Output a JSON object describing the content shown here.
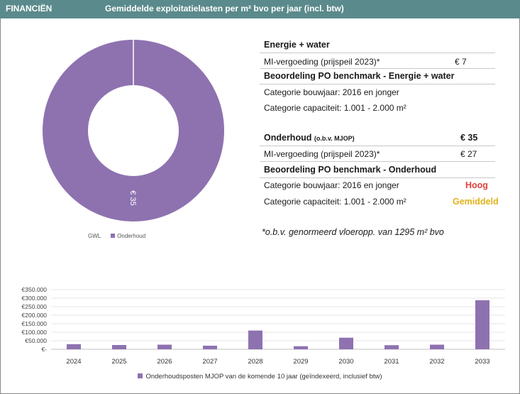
{
  "header": {
    "section": "FINANCIËN",
    "title": "Gemiddelde exploitatielasten per m² bvo per jaar (incl. btw)"
  },
  "energie": {
    "heading": "Energie + water",
    "mi_label": "MI-vergoeding (prijspeil 2023)*",
    "mi_value": "€ 7",
    "benchmark_heading": "Beoordeling PO benchmark - Energie + water",
    "cat_bouwjaar": "Categorie bouwjaar: 2016 en jonger",
    "cat_capaciteit": "Categorie capaciteit: 1.001 - 2.000 m²"
  },
  "onderhoud": {
    "heading": "Onderhoud",
    "heading_suffix": "(o.b.v. MJOP)",
    "total": "€ 35",
    "mi_label": "MI-vergoeding (prijspeil 2023)*",
    "mi_value": "€ 27",
    "benchmark_heading": "Beoordeling PO benchmark - Onderhoud",
    "cat_bouwjaar": "Categorie bouwjaar: 2016 en jonger",
    "cat_bouwjaar_rating": "Hoog",
    "cat_capaciteit": "Categorie capaciteit: 1.001 - 2.000 m²",
    "cat_capaciteit_rating": "Gemiddeld"
  },
  "note": "*o.b.v. genormeerd vloeropp. van 1295 m² bvo",
  "colors": {
    "header_bg": "#5b8a8c",
    "series": "#8e72b0",
    "rating_high": "#e0413c",
    "rating_mid": "#e0b21c"
  },
  "chart_data": [
    {
      "type": "pie",
      "variant": "donut",
      "categories": [
        "GWL",
        "Onderhoud"
      ],
      "values": [
        0,
        35
      ],
      "data_labels": [
        "",
        "€ 35"
      ],
      "legend_entries": [
        "GWL",
        "Onderhoud"
      ],
      "legend_placement": "bottom"
    },
    {
      "type": "bar",
      "categories": [
        "2024",
        "2025",
        "2026",
        "2027",
        "2028",
        "2029",
        "2030",
        "2031",
        "2032",
        "2033"
      ],
      "series": [
        {
          "name": "Onderhoudsposten MJOP van de komende 10 jaar (geïndexeerd, inclusief btw)",
          "values": [
            30000,
            25000,
            27000,
            21000,
            110000,
            18000,
            68000,
            24000,
            27000,
            288000
          ]
        }
      ],
      "y_ticks": [
        "€-",
        "€50.000",
        "€100.000",
        "€150.000",
        "€200.000",
        "€250.000",
        "€300.000",
        "€350.000"
      ],
      "ylim": [
        0,
        350000
      ],
      "grid": true,
      "legend_placement": "bottom"
    }
  ]
}
